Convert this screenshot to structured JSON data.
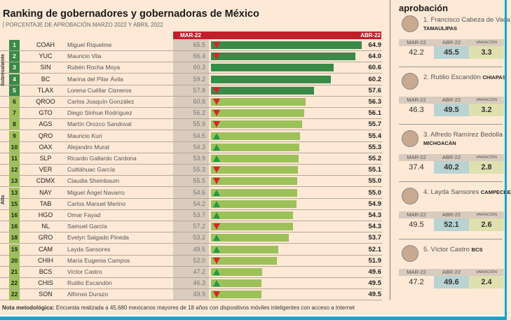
{
  "title": "Ranking de gobernadores y gobernadoras de México",
  "subtitle": "PORCENTAJE DE APROBACIÓN MARZO 2022 Y ABRIL 2022",
  "groups": [
    "Sobresaliente",
    "Alta"
  ],
  "colors": {
    "header": "#c0202a",
    "dark_green": "#3a8a48",
    "light_green": "#9cc158",
    "up": "#1f9a4a",
    "down": "#d8232a",
    "gray": "#d9cbbd"
  },
  "chart_data": {
    "type": "bar",
    "series_labels": [
      "MAR-22",
      "ABR-22"
    ],
    "rows": [
      {
        "rank": "1",
        "state": "COAH",
        "name": "Miguel Riquelme",
        "mar": 65.5,
        "abr": 64.9,
        "trend": "down",
        "group": "Sobresaliente"
      },
      {
        "rank": "2",
        "state": "YUC",
        "name": "Mauricio Vila",
        "mar": 66.4,
        "abr": 64.0,
        "trend": "down",
        "group": "Sobresaliente"
      },
      {
        "rank": "3",
        "state": "SIN",
        "name": "Rubén Rocha Moya",
        "mar": 60.3,
        "abr": 60.6,
        "trend": "up",
        "group": "Sobresaliente"
      },
      {
        "rank": "4",
        "state": "BC",
        "name": "Marina del Pilar Ávila",
        "mar": 59.2,
        "abr": 60.2,
        "trend": "up",
        "group": "Sobresaliente"
      },
      {
        "rank": "5",
        "state": "TLAX",
        "name": "Lorena Cuéllar Cisneros",
        "mar": 57.8,
        "abr": 57.6,
        "trend": "down",
        "group": "Sobresaliente"
      },
      {
        "rank": "6",
        "state": "QROO",
        "name": "Carlos Joaquín González",
        "mar": 60.8,
        "abr": 56.3,
        "trend": "down",
        "group": "Alta"
      },
      {
        "rank": "7",
        "state": "GTO",
        "name": "Diego Sinhue Rodríguez",
        "mar": 56.2,
        "abr": 56.1,
        "trend": "down",
        "group": "Alta"
      },
      {
        "rank": "8",
        "state": "AGS",
        "name": "Martín Orozco Sandoval",
        "mar": 55.9,
        "abr": 55.7,
        "trend": "down",
        "group": "Alta"
      },
      {
        "rank": "9",
        "state": "QRO",
        "name": "Mauricio Kuri",
        "mar": 54.5,
        "abr": 55.4,
        "trend": "up",
        "group": "Alta"
      },
      {
        "rank": "10",
        "state": "OAX",
        "name": "Alejandro Murat",
        "mar": 54.3,
        "abr": 55.3,
        "trend": "up",
        "group": "Alta"
      },
      {
        "rank": "11",
        "state": "SLP",
        "name": "Ricardo Gallardo Cardona",
        "mar": 53.9,
        "abr": 55.2,
        "trend": "up",
        "group": "Alta"
      },
      {
        "rank": "12",
        "state": "VER",
        "name": "Cuitláhuac García",
        "mar": 55.3,
        "abr": 55.1,
        "trend": "down",
        "group": "Alta"
      },
      {
        "rank": "13",
        "state": "CDMX",
        "name": "Claudia Sheinbaum",
        "mar": 55.5,
        "abr": 55.0,
        "trend": "down",
        "group": "Alta"
      },
      {
        "rank": "13",
        "state": "NAY",
        "name": "Miguel Ángel Navarro",
        "mar": 54.6,
        "abr": 55.0,
        "trend": "up",
        "group": "Alta"
      },
      {
        "rank": "15",
        "state": "TAB",
        "name": "Carlos Manuel Merino",
        "mar": 54.2,
        "abr": 54.9,
        "trend": "up",
        "group": "Alta"
      },
      {
        "rank": "16",
        "state": "HGO",
        "name": "Omar Fayad",
        "mar": 53.7,
        "abr": 54.3,
        "trend": "up",
        "group": "Alta"
      },
      {
        "rank": "16",
        "state": "NL",
        "name": "Samuel García",
        "mar": 57.2,
        "abr": 54.3,
        "trend": "down",
        "group": "Alta"
      },
      {
        "rank": "18",
        "state": "GRO",
        "name": "Evelyn Salgado Pineda",
        "mar": 53.2,
        "abr": 53.7,
        "trend": "up",
        "group": "Alta"
      },
      {
        "rank": "19",
        "state": "CAM",
        "name": "Layda Sansores",
        "mar": 49.5,
        "abr": 52.1,
        "trend": "up",
        "group": "Alta"
      },
      {
        "rank": "20",
        "state": "CHIH",
        "name": "María Eugenia Campos",
        "mar": 52.0,
        "abr": 51.9,
        "trend": "down",
        "group": "Alta"
      },
      {
        "rank": "21",
        "state": "BCS",
        "name": "Víctor Castro",
        "mar": 47.2,
        "abr": 49.6,
        "trend": "up",
        "group": "Alta"
      },
      {
        "rank": "22",
        "state": "CHIS",
        "name": "Rutilio Escandón",
        "mar": 46.3,
        "abr": 49.5,
        "trend": "up",
        "group": "Alta"
      },
      {
        "rank": "22",
        "state": "SON",
        "name": "Alfonso Durazo",
        "mar": 49.9,
        "abr": 49.5,
        "trend": "down",
        "group": "Alta"
      }
    ]
  },
  "panel": {
    "title": "aprobación",
    "col_labels": [
      "MAR-22",
      "ABR-22",
      "VARIACIÓN"
    ],
    "cards": [
      {
        "name": "1. Francisco Cabeza de Vaca",
        "state": "TAMAULIPAS",
        "mar": "42.2",
        "abr": "45.5",
        "var": "3.3"
      },
      {
        "name": "2. Rutilio Escandón",
        "state": "CHIAPAS",
        "mar": "46.3",
        "abr": "49.5",
        "var": "3.2"
      },
      {
        "name": "3. Alfredo Ramírez Bedolla",
        "state": "MICHOACÁN",
        "mar": "37.4",
        "abr": "40.2",
        "var": "2.8"
      },
      {
        "name": "4. Layda Sansores",
        "state": "CAMPECHE",
        "mar": "49.5",
        "abr": "52.1",
        "var": "2.6"
      },
      {
        "name": "5. Víctor Castro",
        "state": "BCS",
        "mar": "47.2",
        "abr": "49.6",
        "var": "2.4"
      }
    ]
  },
  "note": {
    "label": "Nota metodológica:",
    "text": " Encuesta realizada a 45,680 mexicanos mayores de 18 años con dispositivos móviles inteligentes con acceso a Internet"
  }
}
